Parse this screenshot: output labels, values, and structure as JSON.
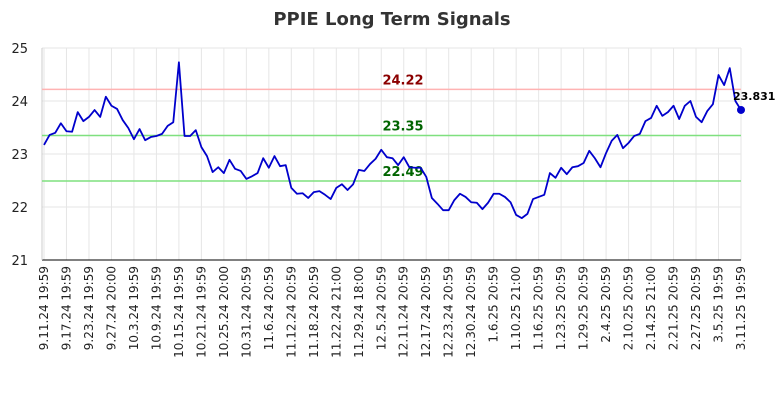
{
  "chart_data": {
    "type": "line",
    "title": "PPIE Long Term Signals",
    "color": "#0000cc",
    "ylim": [
      21,
      25
    ],
    "yticks": [
      21,
      22,
      23,
      24,
      25
    ],
    "grid": true,
    "hlines": [
      {
        "value": 24.22,
        "color": "#ffb3b3",
        "label_color": "#8b0000"
      },
      {
        "value": 23.35,
        "color": "#7fe07f",
        "label_color": "#006400"
      },
      {
        "value": 22.49,
        "color": "#7fe07f",
        "label_color": "#006400"
      }
    ],
    "categories": [
      "9.11.24 19:59",
      null,
      null,
      null,
      "9.17.24 19:59",
      null,
      null,
      null,
      "9.23.24 19:59",
      null,
      null,
      null,
      "9.27.24 20:00",
      null,
      null,
      null,
      "10.3.24 19:59",
      null,
      null,
      null,
      "10.9.24 19:59",
      null,
      null,
      null,
      "10.15.24 19:59",
      null,
      null,
      null,
      "10.21.24 19:59",
      null,
      null,
      null,
      "10.25.24 20:00",
      null,
      null,
      null,
      "10.31.24 20:59",
      null,
      null,
      null,
      "11.6.24 20:59",
      null,
      null,
      null,
      "11.12.24 20:59",
      null,
      null,
      null,
      "11.18.24 20:59",
      null,
      null,
      null,
      "11.22.24 21:00",
      null,
      null,
      null,
      "11.29.24 18:00",
      null,
      null,
      null,
      "12.5.24 20:59",
      null,
      null,
      null,
      "12.11.24 20:59",
      null,
      null,
      null,
      "12.17.24 20:59",
      null,
      null,
      null,
      "12.23.24 20:59",
      null,
      null,
      null,
      "12.30.24 20:59",
      null,
      null,
      null,
      "1.6.25 20:59",
      null,
      null,
      null,
      "1.10.25 21:00",
      null,
      null,
      null,
      "1.16.25 20:59",
      null,
      null,
      null,
      "1.23.25 20:59",
      null,
      null,
      null,
      "1.29.25 20:59",
      null,
      null,
      null,
      "2.4.25 20:59",
      null,
      null,
      null,
      "2.10.25 20:59",
      null,
      null,
      null,
      "2.14.25 21:00",
      null,
      null,
      null,
      "2.21.25 20:59",
      null,
      null,
      null,
      "2.27.25 20:59",
      null,
      null,
      null,
      "3.5.25 19:59",
      null,
      null,
      null,
      "3.11.25 19:59"
    ],
    "values": [
      23.17,
      23.36,
      23.4,
      23.58,
      23.43,
      23.42,
      23.79,
      23.62,
      23.7,
      23.83,
      23.7,
      24.08,
      23.91,
      23.85,
      23.64,
      23.49,
      23.28,
      23.47,
      23.26,
      23.32,
      23.34,
      23.38,
      23.53,
      23.6,
      24.73,
      23.34,
      23.34,
      23.45,
      23.13,
      22.96,
      22.66,
      22.75,
      22.64,
      22.89,
      22.72,
      22.68,
      22.53,
      22.58,
      22.64,
      22.92,
      22.74,
      22.96,
      22.77,
      22.79,
      22.36,
      22.25,
      22.26,
      22.17,
      22.28,
      22.3,
      22.23,
      22.15,
      22.36,
      22.43,
      22.32,
      22.43,
      22.7,
      22.68,
      22.81,
      22.91,
      23.08,
      22.94,
      22.92,
      22.79,
      22.94,
      22.75,
      22.74,
      22.74,
      22.57,
      22.17,
      22.06,
      21.94,
      21.94,
      22.13,
      22.25,
      22.19,
      22.09,
      22.08,
      21.96,
      22.08,
      22.25,
      22.25,
      22.19,
      22.09,
      21.85,
      21.79,
      21.87,
      22.15,
      22.19,
      22.23,
      22.64,
      22.55,
      22.74,
      22.62,
      22.75,
      22.77,
      22.83,
      23.06,
      22.92,
      22.75,
      23.02,
      23.25,
      23.36,
      23.11,
      23.21,
      23.34,
      23.38,
      23.62,
      23.68,
      23.91,
      23.72,
      23.79,
      23.91,
      23.66,
      23.91,
      24.0,
      23.7,
      23.6,
      23.81,
      23.94,
      24.49,
      24.3,
      24.62,
      24.0,
      23.831
    ]
  }
}
